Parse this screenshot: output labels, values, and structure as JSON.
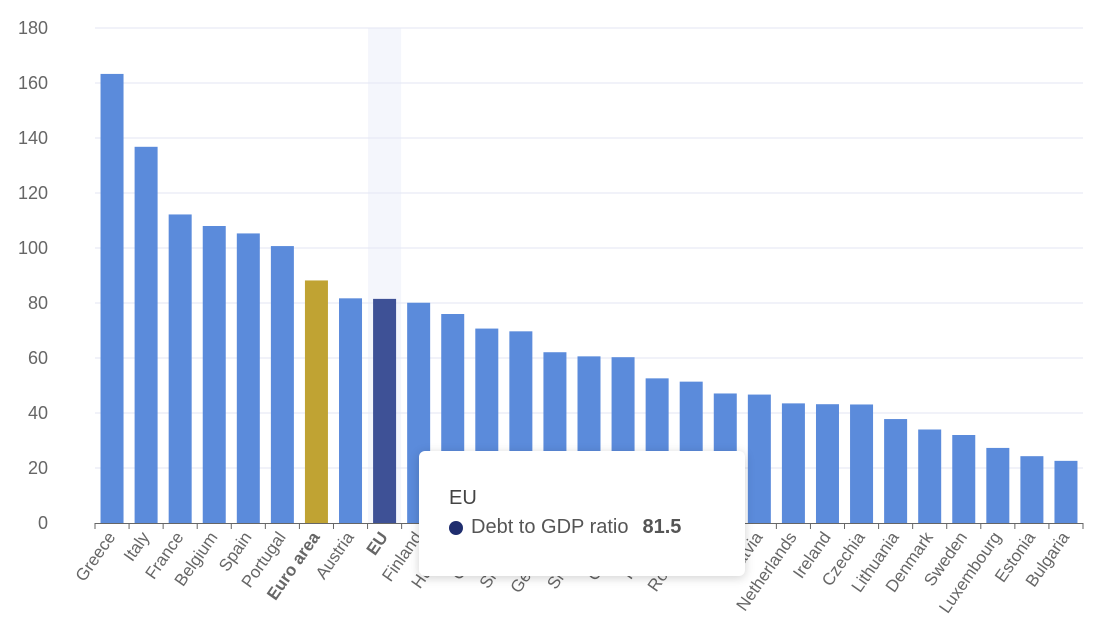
{
  "chart_data": {
    "type": "bar",
    "title": "",
    "xlabel": "",
    "ylabel": "",
    "ylim": [
      0,
      180
    ],
    "yticks": [
      0,
      20,
      40,
      60,
      80,
      100,
      120,
      140,
      160,
      180
    ],
    "grid": true,
    "categories": [
      "Greece",
      "Italy",
      "France",
      "Belgium",
      "Spain",
      "Portugal",
      "Euro area",
      "Austria",
      "EU",
      "Finland",
      "Hungary",
      "Cyprus",
      "Slovakia",
      "Germany",
      "Slovenia",
      "Croatia",
      "Poland",
      "Romania",
      "Malta",
      "Latvia",
      "Netherlands",
      "Ireland",
      "Czechia",
      "Lithuania",
      "Denmark",
      "Sweden",
      "Luxembourg",
      "Estonia",
      "Bulgaria"
    ],
    "bold_categories": [
      "Euro area",
      "EU"
    ],
    "series": [
      {
        "name": "Debt to GDP ratio",
        "values": [
          163.3,
          136.8,
          112.2,
          108.0,
          105.3,
          100.7,
          88.2,
          81.7,
          81.5,
          80.1,
          76.0,
          70.7,
          69.7,
          62.1,
          60.6,
          60.3,
          52.6,
          51.4,
          47.1,
          46.7,
          43.5,
          43.2,
          43.1,
          37.8,
          34.0,
          32.0,
          27.3,
          24.3,
          22.6
        ]
      }
    ],
    "colors": {
      "default": "#5b8bdb",
      "Euro area": "#c0a333",
      "EU": "#3e5196",
      "hover_band": "#f4f6fc",
      "grid": "#e3e6f3",
      "axis_text": "#666666"
    },
    "highlighted": "EU"
  },
  "tooltip": {
    "title": "EU",
    "series_label": "Debt to GDP ratio",
    "value": "81.5",
    "marker_color": "#1f2d6e"
  }
}
